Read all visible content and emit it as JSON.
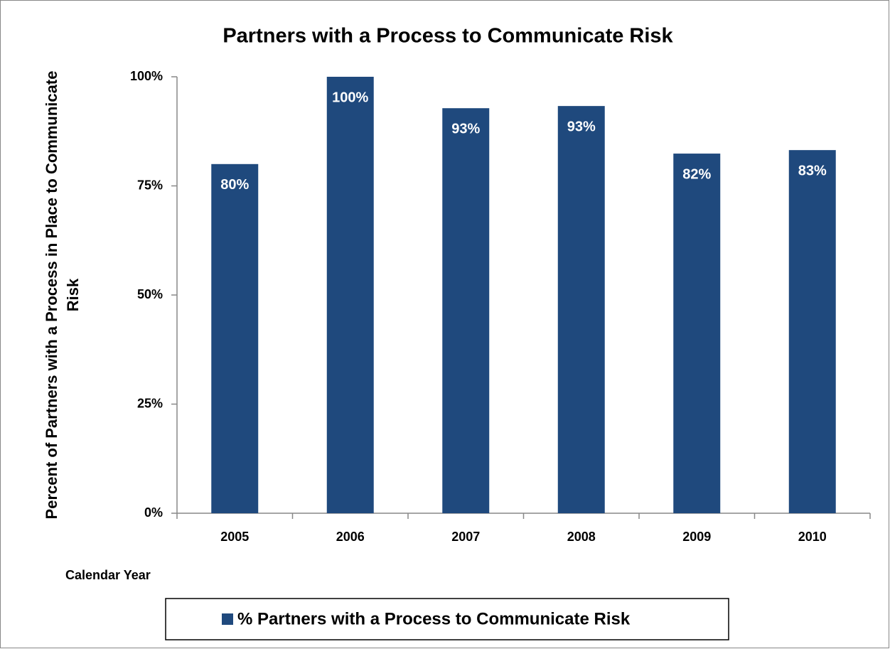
{
  "chart_data": {
    "type": "bar",
    "title": "Partners with a Process to Communicate Risk",
    "y_label": "Percent of Partners with a Process in Place to Communicate Risk",
    "x_label": "Calendar Year",
    "categories": [
      "2005",
      "2006",
      "2007",
      "2008",
      "2009",
      "2010"
    ],
    "series": [
      {
        "name": "% Partners with a Process to Communicate Risk",
        "color": "#1f497d",
        "values": [
          80,
          100,
          92.8,
          93.3,
          82.4,
          83.2
        ],
        "value_labels": [
          "80%",
          "100%",
          "93%",
          "93%",
          "82%",
          "83%"
        ]
      }
    ],
    "ylim": [
      0,
      100
    ],
    "yticks": [
      {
        "value": 0,
        "label": "0%"
      },
      {
        "value": 25,
        "label": "25%"
      },
      {
        "value": 50,
        "label": "50%"
      },
      {
        "value": 75,
        "label": "75%"
      },
      {
        "value": 100,
        "label": "100%"
      }
    ],
    "grid": false,
    "legend": "bottom"
  }
}
